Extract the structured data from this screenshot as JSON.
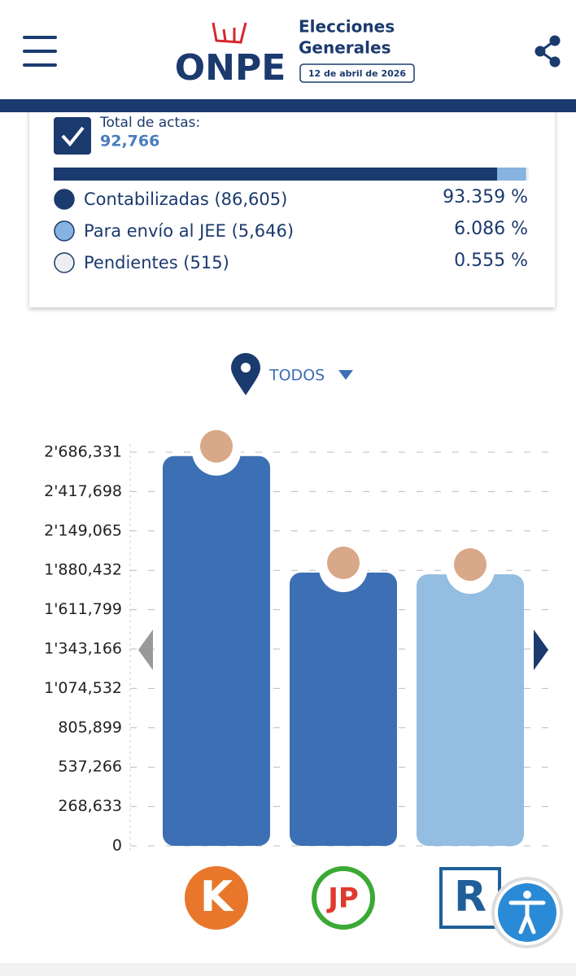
{
  "header": {
    "logo": "ONPE",
    "line1": "Elecciones",
    "line2": "Generales",
    "date": "12 de abril de 2026"
  },
  "actas": {
    "title": "Total de actas:",
    "total": "92,766",
    "items": [
      {
        "label": "Contabilizadas (86,605)",
        "percent": 93.359,
        "percent_label": "93.359 %",
        "color": "#1b3a6e"
      },
      {
        "label": "Para envío al JEE (5,646)",
        "percent": 6.086,
        "percent_label": "6.086 %",
        "color": "#86b3e0"
      },
      {
        "label": "Pendientes (515)",
        "percent": 0.555,
        "percent_label": "0.555 %",
        "color": "#eceef1"
      }
    ]
  },
  "filter": "TODOS",
  "chart_data": {
    "type": "bar",
    "categories": [
      "K",
      "JP",
      "R"
    ],
    "series": [
      {
        "values": [
          2660000,
          1865000,
          1853000
        ],
        "colors": [
          "#3d6fb4",
          "#3d6fb4",
          "#93bde1"
        ]
      }
    ],
    "ylim": [
      0,
      2686331
    ],
    "yticks": [
      0,
      {
        "value": 268633,
        "label": "268,633"
      },
      {
        "value": 537266,
        "label": "537,266"
      },
      {
        "value": 805899,
        "label": "805,899"
      },
      {
        "value": 1074532,
        "label": "1'074,532"
      },
      {
        "value": 1343166,
        "label": "1'343,166"
      },
      {
        "value": 1611799,
        "label": "1'611,799"
      },
      {
        "value": 1880432,
        "label": "1'880,432"
      },
      {
        "value": 2149065,
        "label": "2'149,065"
      },
      {
        "value": 2417698,
        "label": "2'417,698"
      },
      {
        "value": 2686331,
        "label": "2'686,331"
      }
    ],
    "grid": true
  }
}
